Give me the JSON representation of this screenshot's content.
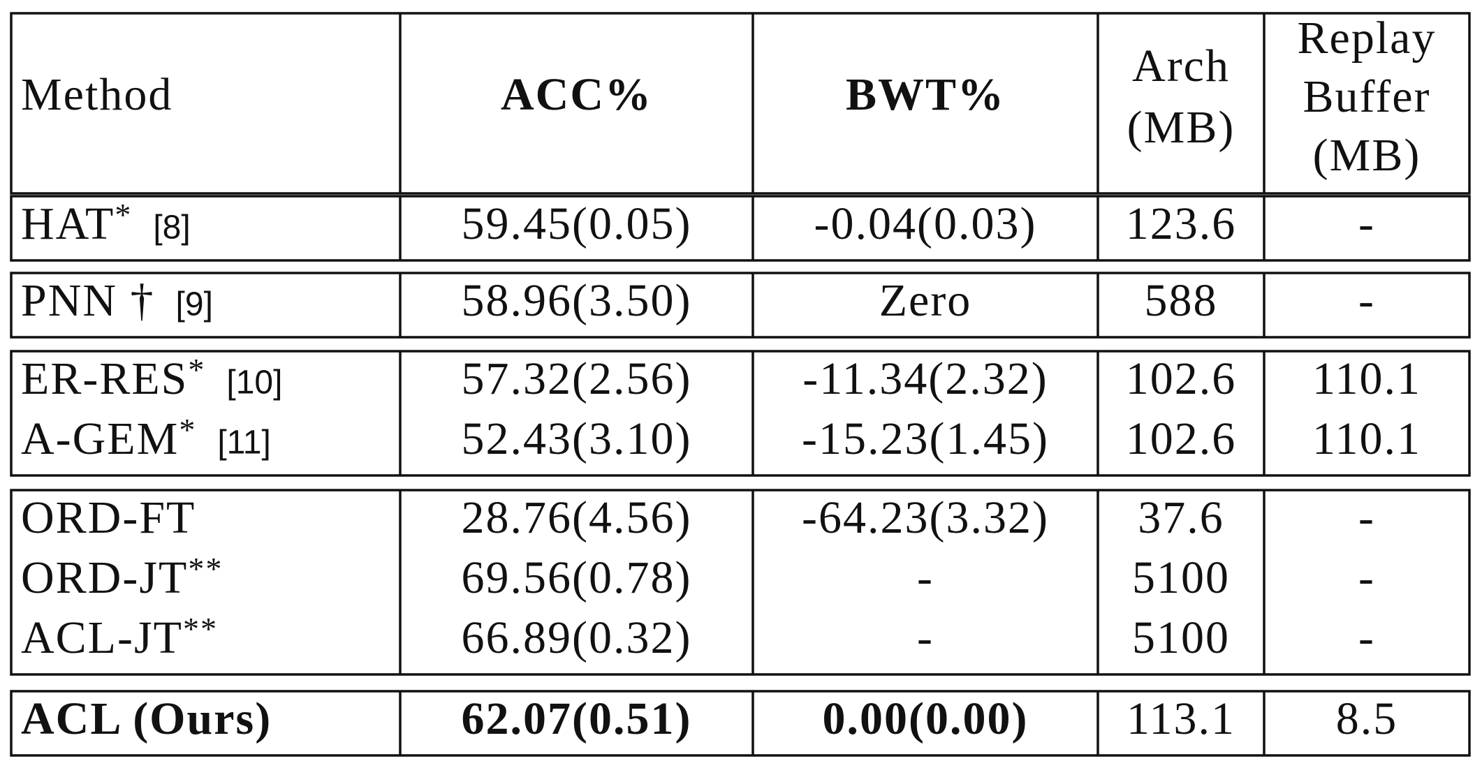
{
  "table": {
    "header": {
      "method": "Method",
      "acc": "ACC%",
      "bwt": "BWT%",
      "arch": [
        "Arch",
        "(MB)"
      ],
      "replay": [
        "Replay",
        "Buffer",
        "(MB)"
      ]
    },
    "groups": [
      [
        {
          "method": "HAT",
          "mark": "*",
          "cite": "[8]",
          "acc": "59.45(0.05)",
          "bwt": "-0.04(0.03)",
          "arch": "123.6",
          "replay": "-"
        }
      ],
      [
        {
          "method": "PNN †",
          "cite": "[9]",
          "acc": "58.96(3.50)",
          "bwt": "Zero",
          "arch": "588",
          "replay": "-"
        }
      ],
      [
        {
          "method": "ER-RES",
          "mark": "*",
          "cite": "[10]",
          "acc": "57.32(2.56)",
          "bwt": "-11.34(2.32)",
          "arch": "102.6",
          "replay": "110.1"
        },
        {
          "method": "A-GEM",
          "mark": "*",
          "cite": "[11]",
          "acc": "52.43(3.10)",
          "bwt": "-15.23(1.45)",
          "arch": "102.6",
          "replay": "110.1"
        }
      ],
      [
        {
          "method": "ORD-FT",
          "acc": "28.76(4.56)",
          "bwt": "-64.23(3.32)",
          "arch": "37.6",
          "replay": "-"
        },
        {
          "method": "ORD-JT",
          "mark": "**",
          "acc": "69.56(0.78)",
          "bwt": "-",
          "arch": "5100",
          "replay": "-"
        },
        {
          "method": "ACL-JT",
          "mark": "**",
          "acc": "66.89(0.32)",
          "bwt": "-",
          "arch": "5100",
          "replay": "-"
        }
      ],
      [
        {
          "method": "ACL (Ours)",
          "acc": "62.07(0.51)",
          "bwt": "0.00(0.00)",
          "arch": "113.1",
          "replay": "8.5"
        }
      ]
    ]
  }
}
